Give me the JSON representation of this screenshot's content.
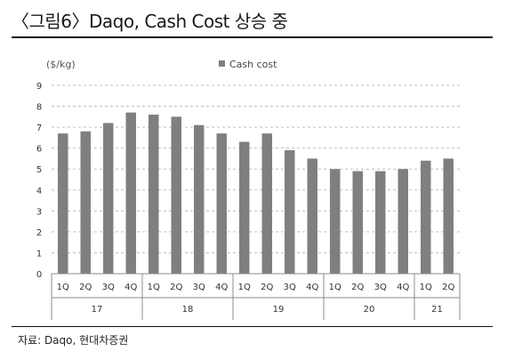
{
  "title": "〈그림6〉Daqo, Cash Cost 상승 중",
  "source": "자료: Daqo,  현대차증권",
  "colors": {
    "bar": "#7f7f7f",
    "grid": "#bfbfbf",
    "axis": "#8c8c8c",
    "text": "#333333"
  },
  "chart_data": {
    "type": "bar",
    "unit_label": "($/kg)",
    "categories": [
      "1Q",
      "2Q",
      "3Q",
      "4Q",
      "1Q",
      "2Q",
      "3Q",
      "4Q",
      "1Q",
      "2Q",
      "3Q",
      "4Q",
      "1Q",
      "2Q",
      "3Q",
      "4Q",
      "1Q",
      "2Q"
    ],
    "groups": [
      {
        "label": "17",
        "count": 4
      },
      {
        "label": "18",
        "count": 4
      },
      {
        "label": "19",
        "count": 4
      },
      {
        "label": "20",
        "count": 4
      },
      {
        "label": "21",
        "count": 2
      }
    ],
    "series": [
      {
        "name": "Cash cost",
        "values": [
          6.7,
          6.8,
          7.2,
          7.7,
          7.6,
          7.5,
          7.1,
          6.7,
          6.3,
          6.7,
          5.9,
          5.5,
          5.0,
          4.9,
          4.9,
          5.0,
          5.4,
          5.5
        ]
      }
    ],
    "ylim": [
      0,
      9
    ],
    "yticks": [
      "0",
      "1",
      "2",
      "3",
      "4",
      "5",
      "6",
      "7",
      "8",
      "9"
    ],
    "legend": "top-center",
    "grid": true
  }
}
